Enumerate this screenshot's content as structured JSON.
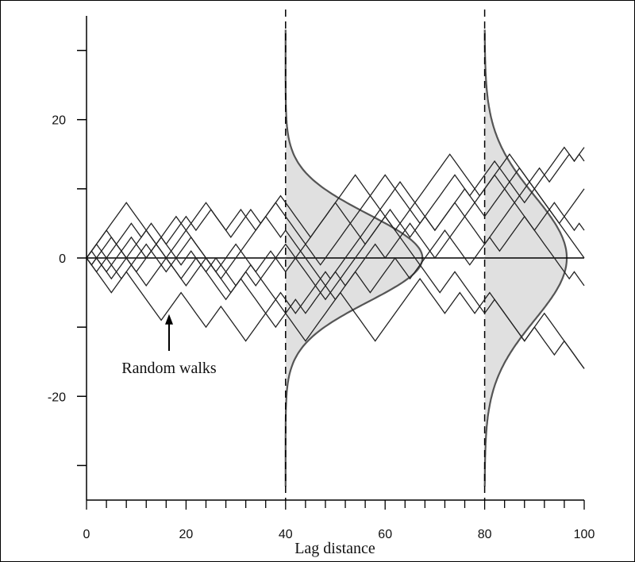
{
  "chart_data": {
    "type": "line",
    "title": "",
    "xlabel": "Lag distance",
    "ylabel": "",
    "xlim": [
      0,
      100
    ],
    "ylim": [
      -35,
      35
    ],
    "x_ticks": [
      0,
      20,
      40,
      60,
      80,
      100
    ],
    "y_ticks": [
      -20,
      0,
      20
    ],
    "grid": false,
    "annotation": "Random walks",
    "annotation_arrow_target": [
      17,
      -8
    ],
    "vertical_lines_at": [
      40,
      80
    ],
    "zero_line": 0,
    "distributions": [
      {
        "x": 40,
        "mean": 0,
        "sd": 6.3,
        "peak_width": 27.5
      },
      {
        "x": 80,
        "mean": 0,
        "sd": 9.0,
        "peak_width": 16.5
      }
    ],
    "series": [
      {
        "values": [
          0,
          1,
          2,
          3,
          4,
          5,
          6,
          7,
          8,
          7,
          6,
          5,
          4,
          3,
          2,
          3,
          4,
          5,
          6,
          5,
          4,
          5,
          6,
          7,
          8,
          7,
          6,
          5,
          4,
          5,
          6,
          7,
          6,
          5,
          4,
          5,
          6,
          7,
          8,
          9,
          8,
          7,
          6,
          5,
          4,
          3,
          4,
          5,
          6,
          7,
          8,
          9,
          10,
          11,
          12,
          11,
          10,
          9,
          8,
          7,
          6,
          5,
          4,
          5,
          6,
          7,
          8,
          9,
          10,
          11,
          12,
          13,
          14,
          15,
          14,
          13,
          12,
          11,
          10,
          9,
          10,
          11,
          12,
          13,
          14,
          15,
          14,
          13,
          12,
          11,
          10,
          11,
          12,
          13,
          14,
          15,
          16,
          15,
          14,
          15,
          16
        ]
      },
      {
        "values": [
          0,
          -1,
          -2,
          -3,
          -4,
          -5,
          -4,
          -3,
          -2,
          -3,
          -4,
          -5,
          -6,
          -7,
          -8,
          -9,
          -8,
          -7,
          -6,
          -5,
          -6,
          -7,
          -8,
          -9,
          -10,
          -9,
          -8,
          -7,
          -8,
          -9,
          -10,
          -11,
          -12,
          -11,
          -10,
          -9,
          -8,
          -7,
          -6,
          -7,
          -8,
          -9,
          -10,
          -11,
          -12,
          -11,
          -10,
          -9,
          -8,
          -7,
          -6,
          -5,
          -6,
          -7,
          -8,
          -9,
          -10,
          -11,
          -12,
          -11,
          -10,
          -9,
          -8,
          -7,
          -6,
          -5,
          -4,
          -3,
          -4,
          -5,
          -6,
          -7,
          -8,
          -7,
          -6,
          -5,
          -6,
          -7,
          -8,
          -7,
          -6,
          -5,
          -6,
          -7,
          -8,
          -9,
          -10,
          -11,
          -12,
          -11,
          -10,
          -11,
          -12,
          -13,
          -14,
          -13,
          -12,
          -13,
          -14,
          -15,
          -16
        ]
      },
      {
        "values": [
          0,
          1,
          2,
          1,
          0,
          1,
          2,
          3,
          4,
          5,
          4,
          3,
          4,
          5,
          4,
          3,
          2,
          3,
          4,
          5,
          6,
          5,
          4,
          5,
          6,
          7,
          6,
          5,
          4,
          3,
          4,
          5,
          6,
          7,
          6,
          5,
          6,
          7,
          8,
          7,
          6,
          5,
          4,
          3,
          2,
          1,
          0,
          -1,
          0,
          1,
          2,
          3,
          4,
          5,
          6,
          7,
          8,
          9,
          10,
          11,
          12,
          11,
          10,
          9,
          8,
          7,
          6,
          5,
          6,
          7,
          8,
          9,
          10,
          11,
          12,
          11,
          10,
          9,
          10,
          11,
          12,
          13,
          14,
          13,
          12,
          11,
          12,
          13,
          12,
          11,
          10,
          9,
          8,
          7,
          6,
          5,
          6,
          7,
          8,
          9,
          10
        ]
      },
      {
        "values": [
          0,
          -1,
          0,
          -1,
          -2,
          -1,
          0,
          1,
          2,
          3,
          2,
          1,
          0,
          1,
          2,
          3,
          2,
          1,
          0,
          -1,
          0,
          1,
          0,
          -1,
          -2,
          -1,
          0,
          -1,
          -2,
          -3,
          -4,
          -3,
          -2,
          -1,
          -2,
          -3,
          -4,
          -5,
          -6,
          -5,
          -6,
          -7,
          -8,
          -7,
          -6,
          -5,
          -4,
          -3,
          -2,
          -3,
          -2,
          -3,
          -4,
          -3,
          -2,
          -1,
          0,
          1,
          2,
          1,
          0,
          1,
          2,
          3,
          4,
          5,
          4,
          3,
          2,
          1,
          0,
          1,
          2,
          3,
          4,
          5,
          6,
          7,
          8,
          7,
          6,
          7,
          8,
          9,
          10,
          11,
          10,
          9,
          8,
          9,
          10,
          9,
          8,
          7,
          6,
          5,
          4,
          3,
          2,
          1,
          0
        ]
      },
      {
        "values": [
          0,
          1,
          0,
          -1,
          -2,
          -3,
          -2,
          -1,
          0,
          1,
          2,
          3,
          4,
          3,
          2,
          1,
          0,
          -1,
          -2,
          -3,
          -4,
          -3,
          -2,
          -1,
          0,
          -1,
          -2,
          -3,
          -4,
          -5,
          -4,
          -3,
          -2,
          -3,
          -4,
          -3,
          -2,
          -1,
          0,
          1,
          2,
          1,
          0,
          -1,
          -2,
          -3,
          -4,
          -5,
          -6,
          -5,
          -4,
          -3,
          -2,
          -1,
          0,
          1,
          2,
          3,
          4,
          5,
          6,
          5,
          4,
          3,
          2,
          1,
          0,
          -1,
          -2,
          -3,
          -4,
          -5,
          -4,
          -3,
          -2,
          -3,
          -4,
          -5,
          -6,
          -7,
          -8,
          -7,
          -6,
          -7,
          -8,
          -9,
          -10,
          -11,
          -12,
          -11,
          -10,
          -9,
          -8,
          -9,
          -10,
          -11,
          -12,
          -13,
          -14,
          -15,
          -16
        ]
      },
      {
        "values": [
          0,
          -1,
          -2,
          -1,
          0,
          -1,
          -2,
          -3,
          -2,
          -1,
          0,
          1,
          2,
          1,
          0,
          -1,
          -2,
          -1,
          0,
          1,
          2,
          3,
          2,
          1,
          0,
          -1,
          -2,
          -1,
          0,
          1,
          2,
          1,
          0,
          -1,
          -2,
          -1,
          0,
          1,
          0,
          -1,
          -2,
          -1,
          0,
          1,
          2,
          3,
          4,
          5,
          6,
          7,
          8,
          7,
          6,
          5,
          4,
          3,
          2,
          3,
          4,
          5,
          6,
          7,
          6,
          5,
          4,
          3,
          4,
          5,
          6,
          5,
          4,
          5,
          6,
          7,
          8,
          7,
          6,
          5,
          4,
          3,
          2,
          3,
          4,
          5,
          6,
          7,
          8,
          9,
          10,
          11,
          12,
          13,
          12,
          11,
          12,
          13,
          14,
          15,
          14,
          15,
          14
        ]
      },
      {
        "values": [
          0,
          1,
          2,
          3,
          4,
          3,
          2,
          1,
          0,
          -1,
          -2,
          -1,
          0,
          1,
          2,
          1,
          0,
          -1,
          -2,
          -3,
          -2,
          -1,
          0,
          -1,
          -2,
          -3,
          -4,
          -5,
          -6,
          -5,
          -4,
          -3,
          -4,
          -5,
          -6,
          -7,
          -8,
          -9,
          -10,
          -9,
          -8,
          -7,
          -6,
          -7,
          -8,
          -7,
          -6,
          -5,
          -4,
          -5,
          -6,
          -5,
          -4,
          -3,
          -2,
          -3,
          -4,
          -5,
          -4,
          -3,
          -2,
          -1,
          0,
          -1,
          -2,
          -3,
          -2,
          -1,
          0,
          1,
          2,
          3,
          4,
          3,
          2,
          1,
          0,
          -1,
          0,
          1,
          2,
          3,
          2,
          1,
          2,
          3,
          4,
          5,
          6,
          5,
          4,
          3,
          2,
          1,
          0,
          -1,
          -2,
          -3,
          -2,
          -3,
          -4
        ]
      },
      {
        "values": [
          0,
          -1,
          0,
          1,
          2,
          3,
          2,
          1,
          0,
          -1,
          -2,
          -3,
          -4,
          -3,
          -2,
          -1,
          0,
          1,
          2,
          3,
          4,
          3,
          2,
          1,
          0,
          -1,
          -2,
          -3,
          -2,
          -1,
          0,
          1,
          2,
          3,
          4,
          5,
          6,
          5,
          4,
          3,
          4,
          3,
          2,
          1,
          0,
          -1,
          -2,
          -3,
          -4,
          -3,
          -2,
          -1,
          0,
          1,
          2,
          3,
          4,
          5,
          6,
          7,
          8,
          9,
          10,
          11,
          10,
          9,
          8,
          7,
          6,
          5,
          4,
          5,
          6,
          7,
          8,
          9,
          10,
          9,
          8,
          9,
          10,
          11,
          12,
          11,
          10,
          9,
          8,
          7,
          6,
          5,
          4,
          5,
          6,
          7,
          8,
          7,
          6,
          5,
          4,
          5,
          4
        ]
      }
    ],
    "colors": {
      "walk": "#222222",
      "distribution_fill": "#e0e0e0",
      "distribution_stroke": "#555555",
      "axis": "#000000"
    }
  }
}
